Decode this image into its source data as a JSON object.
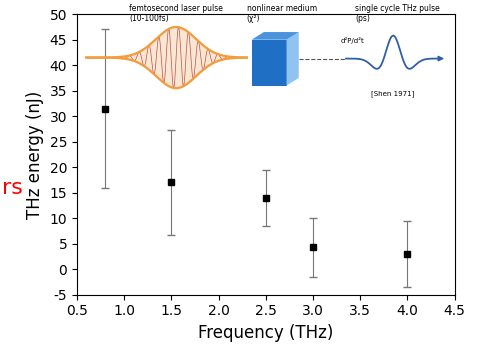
{
  "chart_data": {
    "type": "scatter",
    "x_label": "Frequency (THz)",
    "y_label": "THz energy (nJ)",
    "x": [
      0.8,
      1.5,
      2.5,
      3.0,
      4.0
    ],
    "values": [
      31.5,
      17,
      14,
      4.3,
      3
    ],
    "error": [
      15.5,
      10.3,
      5.5,
      5.8,
      6.5
    ],
    "color": "#000000",
    "marker": "square",
    "xlim": [
      0.5,
      4.5
    ],
    "xticks": [
      0.5,
      1.0,
      1.5,
      2.0,
      2.5,
      3.0,
      3.5,
      4.0,
      4.5
    ],
    "ylim": [
      -5,
      50
    ],
    "yticks": [
      -5,
      0,
      5,
      10,
      15,
      20,
      25,
      30,
      35,
      40,
      45,
      50
    ],
    "grid": false,
    "annotations": [
      "femtosecond laser pulse\n(10-100fs)",
      "nonlinear medium\n(χ²)",
      "single cycle THz pulse\n(ps)",
      "d²P/d²t",
      "[Shen 1971]",
      "rs"
    ]
  }
}
